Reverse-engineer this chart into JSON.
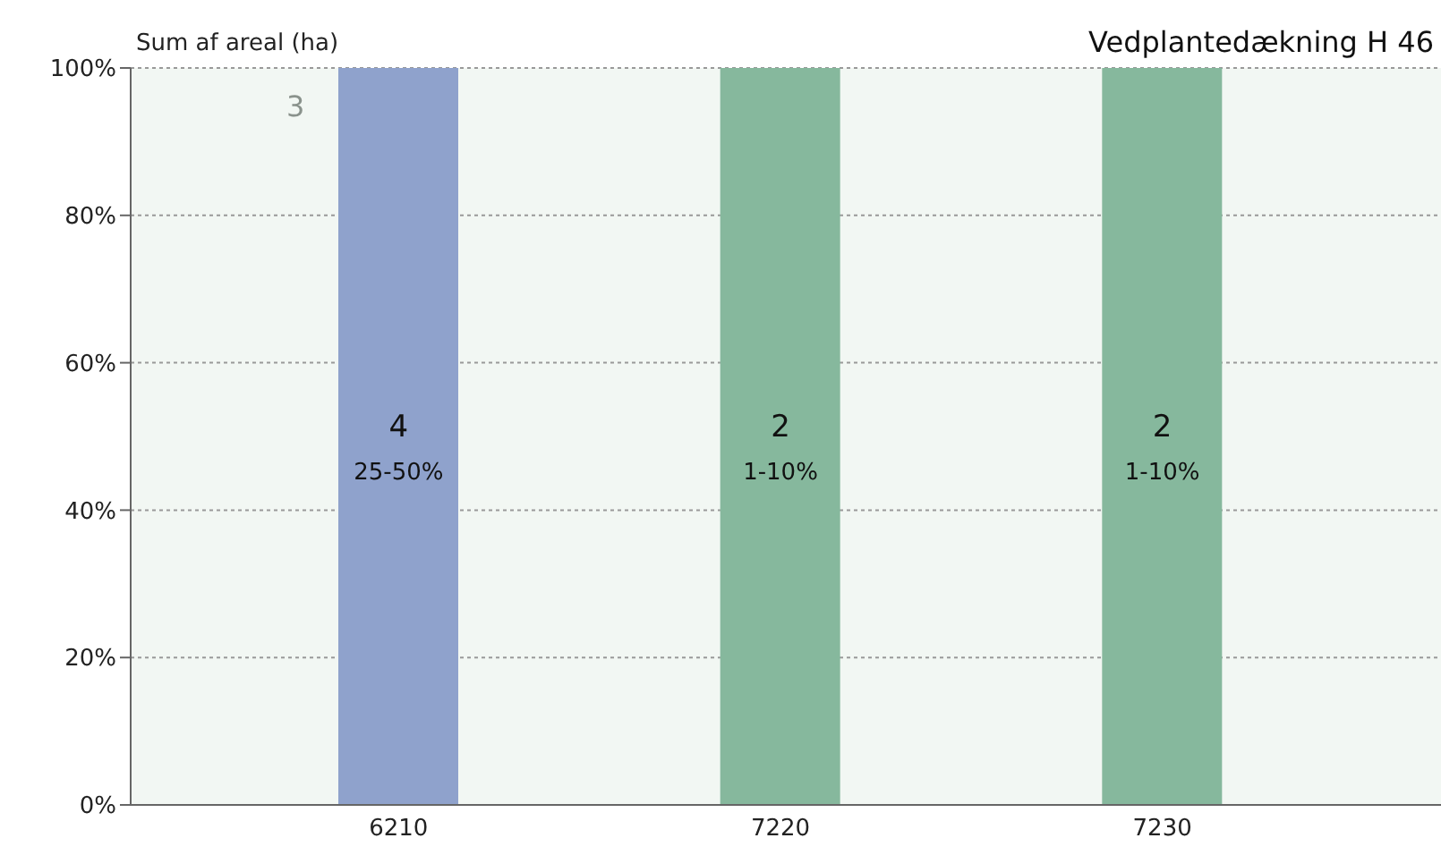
{
  "chart_data": {
    "type": "bar",
    "title": "Vedplantedækning H 46",
    "ylabel": "Sum af areal (ha)",
    "categories": [
      "6210",
      "7220",
      "7230"
    ],
    "values": [
      100,
      100,
      100
    ],
    "colors": [
      "#8fa2cc",
      "#86b89d",
      "#86b89d"
    ],
    "ylim": [
      0,
      100
    ],
    "yticks": [
      {
        "value": 0,
        "label": "0%"
      },
      {
        "value": 20,
        "label": "20%"
      },
      {
        "value": 40,
        "label": "40%"
      },
      {
        "value": 60,
        "label": "60%"
      },
      {
        "value": 80,
        "label": "80%"
      },
      {
        "value": 100,
        "label": "100%"
      }
    ],
    "grid": "y",
    "annotations": [
      "3",
      "4",
      "25-50%",
      "2",
      "1-10%",
      "2",
      "1-10%"
    ]
  }
}
